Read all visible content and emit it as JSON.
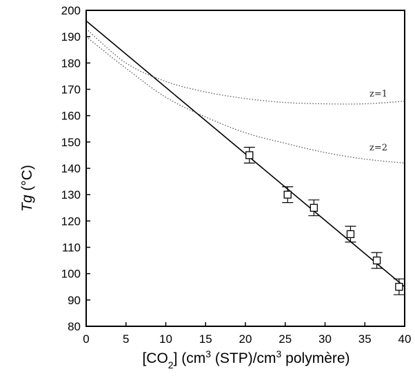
{
  "chart_data": {
    "type": "scatter",
    "title": "",
    "ylabel": {
      "italic": "Tg",
      "rest": " (°C)"
    },
    "xlabel": {
      "pre": "[CO",
      "sub1": "2",
      "mid1": "] (cm",
      "sup1": "3",
      "mid2": " (STP)/cm",
      "sup2": "3",
      "post": " polymère)"
    },
    "xlim": [
      0,
      40
    ],
    "ylim": [
      80,
      200
    ],
    "x_ticks": [
      "0",
      "5",
      "10",
      "15",
      "20",
      "25",
      "30",
      "35",
      "40"
    ],
    "y_ticks": [
      "80",
      "90",
      "100",
      "110",
      "120",
      "130",
      "140",
      "150",
      "160",
      "170",
      "180",
      "190",
      "200"
    ],
    "grid": false,
    "series": [
      {
        "kind": "points",
        "marker": "open-square",
        "x": [
          20.5,
          25.3,
          28.6,
          33.2,
          36.5,
          39.3
        ],
        "y": [
          145,
          130,
          125,
          115,
          105,
          95
        ],
        "err": [
          3,
          3,
          3,
          3,
          3,
          3
        ]
      },
      {
        "kind": "fit-line",
        "style": "solid",
        "x": [
          0,
          40
        ],
        "y": [
          196,
          95
        ]
      },
      {
        "kind": "curve",
        "name": "z=1",
        "style": "dotted",
        "x": [
          0,
          5,
          10,
          15,
          20,
          25,
          30,
          35,
          40
        ],
        "y": [
          193,
          180,
          173,
          169,
          166.5,
          165,
          164.5,
          164.5,
          165.5
        ]
      },
      {
        "kind": "curve",
        "name": "z=2",
        "style": "dotted",
        "x": [
          0,
          5,
          10,
          15,
          20,
          25,
          30,
          35,
          40
        ],
        "y": [
          190,
          178,
          167,
          159.5,
          153.5,
          149.5,
          146,
          143.5,
          142
        ]
      }
    ]
  }
}
